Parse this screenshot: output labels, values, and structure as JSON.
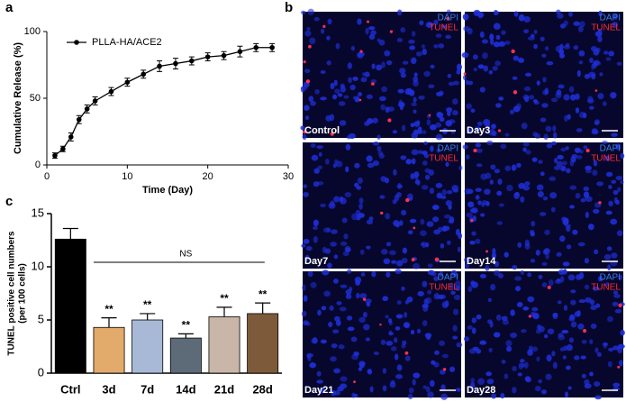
{
  "panel_labels": [
    "a",
    "b",
    "c"
  ],
  "chart_data": [
    {
      "type": "line",
      "xlabel": "Time (Day)",
      "ylabel": "Cumulative Release (%)",
      "x": [
        1,
        2,
        3,
        4,
        5,
        6,
        8,
        10,
        12,
        14,
        16,
        18,
        20,
        22,
        24,
        26,
        28
      ],
      "series": [
        {
          "name": "PLLA-HA/ACE2",
          "color": "#000000",
          "values": [
            7,
            12,
            21,
            34,
            42,
            48,
            55,
            62,
            68,
            74,
            76,
            78,
            81,
            82,
            85,
            88,
            88
          ],
          "errors": [
            2,
            2,
            3,
            3,
            3,
            3,
            3,
            3,
            3,
            4,
            4,
            3,
            3,
            3,
            4,
            3,
            3
          ]
        }
      ],
      "xlim": [
        0,
        30
      ],
      "xticks": [
        0,
        10,
        20,
        30
      ],
      "ylim": [
        0,
        100
      ],
      "yticks": [
        0,
        50,
        100
      ],
      "legend": "top-left"
    },
    {
      "type": "bar",
      "ylabel": [
        "TUNEL positive cell numbers",
        "(per 100 cells)"
      ],
      "categories": [
        "Ctrl",
        "3d",
        "7d",
        "14d",
        "21d",
        "28d"
      ],
      "values": [
        12.6,
        4.3,
        5.0,
        3.3,
        5.3,
        5.6
      ],
      "errors": [
        1.0,
        0.9,
        0.6,
        0.4,
        0.9,
        1.0
      ],
      "colors": [
        "#000000",
        "#e2aa6b",
        "#a7b9d6",
        "#5d6b79",
        "#c9b6a8",
        "#7d5b3a"
      ],
      "significance": [
        null,
        "**",
        "**",
        "**",
        "**",
        "**"
      ],
      "bracket_label": "NS",
      "ylim": [
        0,
        15
      ],
      "yticks": [
        0,
        5,
        10,
        15
      ]
    }
  ],
  "micrographs": {
    "stains": [
      "DAPI",
      "TUNEL"
    ],
    "panels": [
      "Control",
      "Day3",
      "Day7",
      "Day14",
      "Day21",
      "Day28"
    ]
  }
}
